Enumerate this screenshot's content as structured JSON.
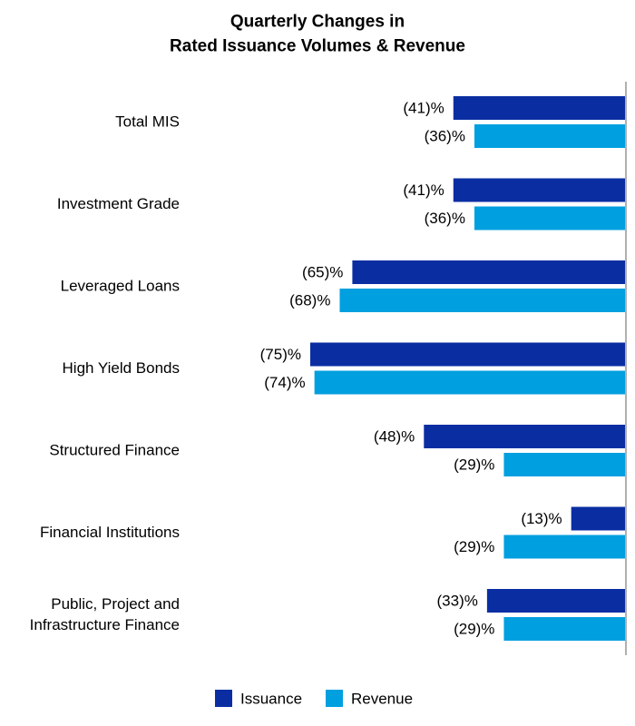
{
  "chart_data": {
    "type": "bar",
    "orientation": "horizontal",
    "title_lines": [
      "Quarterly Changes in",
      "Rated Issuance Volumes & Revenue"
    ],
    "categories": [
      [
        "Total MIS"
      ],
      [
        "Investment Grade"
      ],
      [
        "Leveraged Loans"
      ],
      [
        "High Yield Bonds"
      ],
      [
        "Structured Finance"
      ],
      [
        "Financial Institutions"
      ],
      [
        "Public, Project and",
        "Infrastructure Finance"
      ]
    ],
    "series": [
      {
        "name": "Issuance",
        "color": "#0a2ea2",
        "values": [
          -41,
          -41,
          -65,
          -75,
          -48,
          -13,
          -33
        ],
        "labels": [
          "(41)%",
          "(41)%",
          "(65)%",
          "(75)%",
          "(48)%",
          "(13)%",
          "(33)%"
        ]
      },
      {
        "name": "Revenue",
        "color": "#009fdf",
        "values": [
          -36,
          -36,
          -68,
          -74,
          -29,
          -29,
          -29
        ],
        "labels": [
          "(36)%",
          "(36)%",
          "(68)%",
          "(74)%",
          "(29)%",
          "(29)%",
          "(29)%"
        ]
      }
    ],
    "xlim": [
      -80,
      0
    ],
    "grid": false,
    "legend_position": "bottom",
    "axis_color": "#b0b0b0"
  }
}
